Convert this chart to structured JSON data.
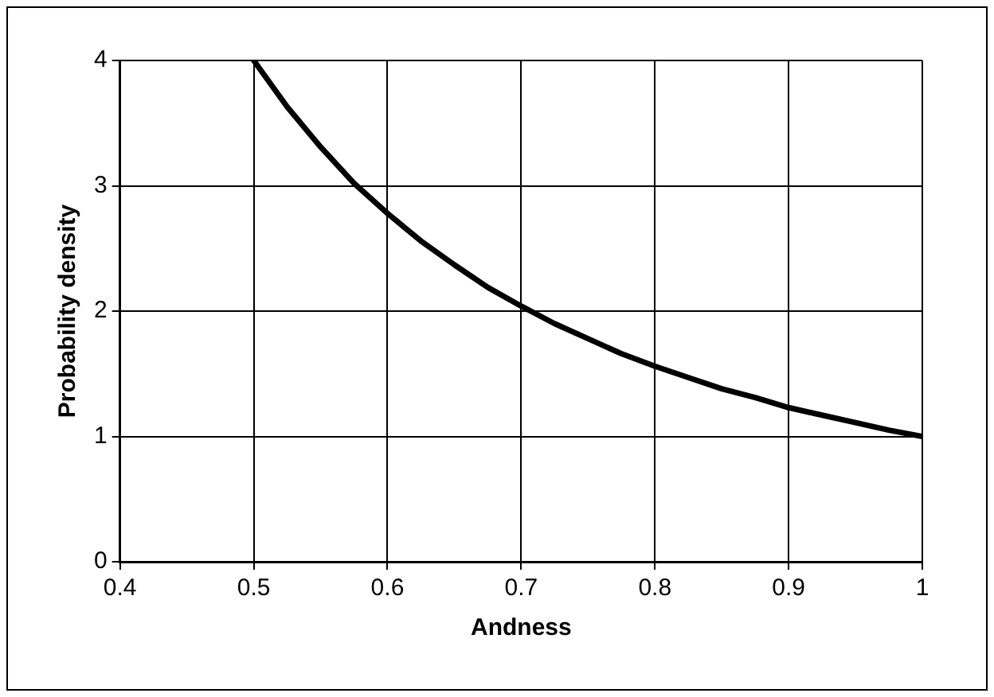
{
  "chart_data": {
    "type": "line",
    "xlabel": "Andness",
    "ylabel": "Probability density",
    "x": [
      0.5,
      0.525,
      0.55,
      0.575,
      0.6,
      0.625,
      0.65,
      0.675,
      0.7,
      0.725,
      0.75,
      0.775,
      0.8,
      0.825,
      0.85,
      0.875,
      0.9,
      0.925,
      0.95,
      0.975,
      1.0
    ],
    "series": [
      {
        "color": "#000000",
        "values": [
          4.0,
          3.63,
          3.31,
          3.02,
          2.78,
          2.56,
          2.37,
          2.19,
          2.04,
          1.9,
          1.78,
          1.66,
          1.56,
          1.47,
          1.38,
          1.31,
          1.23,
          1.17,
          1.11,
          1.05,
          1.0
        ]
      }
    ],
    "xlim": [
      0.4,
      1
    ],
    "xticks": [
      0.4,
      0.5,
      0.6,
      0.7,
      0.8,
      0.9,
      1
    ],
    "ylim": [
      0,
      4
    ],
    "yticks": [
      0,
      1,
      2,
      3,
      4
    ],
    "grid": true,
    "legend": false,
    "marker": "none",
    "line_style": "solid"
  }
}
